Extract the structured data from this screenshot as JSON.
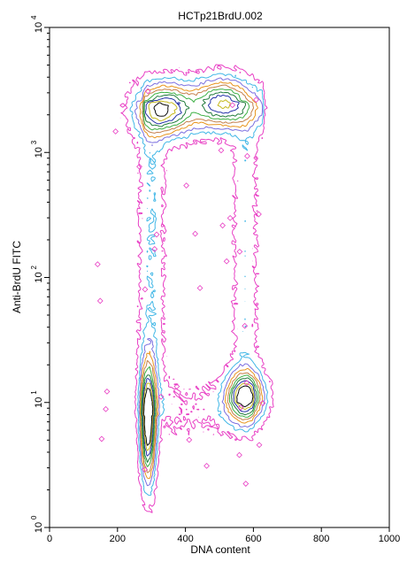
{
  "chart_data": {
    "type": "contour",
    "title": "HCTp21BrdU.002",
    "xlabel": "DNA content",
    "ylabel": "Anti-BrdU FITC",
    "xlim": [
      0,
      1000
    ],
    "ylim": [
      1,
      10000
    ],
    "yscale": "log",
    "x_ticks": [
      0,
      200,
      400,
      600,
      800,
      1000
    ],
    "y_ticks": [
      {
        "value": 1,
        "base": "10",
        "exp": "0"
      },
      {
        "value": 10,
        "base": "10",
        "exp": "1"
      },
      {
        "value": 100,
        "base": "10",
        "exp": "2"
      },
      {
        "value": 1000,
        "base": "10",
        "exp": "3"
      },
      {
        "value": 10000,
        "base": "10",
        "exp": "4"
      }
    ],
    "grid": false,
    "legend": "none",
    "populations": [
      {
        "x": 290,
        "y": 7,
        "sx": 14,
        "sly": 0.3,
        "weight": 1.0
      },
      {
        "x": 575,
        "y": 11,
        "sx": 35,
        "sly": 0.13,
        "weight": 0.85
      },
      {
        "x": 340,
        "y": 2200,
        "sx": 55,
        "sly": 0.14,
        "weight": 0.65
      },
      {
        "x": 510,
        "y": 2500,
        "sx": 55,
        "sly": 0.13,
        "weight": 0.6
      }
    ],
    "contour_colors": [
      "#e83ec4",
      "#3fb6e6",
      "#7b6fe0",
      "#e8941c",
      "#c47f4a",
      "#3cb043",
      "#1f7a3a",
      "#2430a8",
      "#c4b81a",
      "#0a0a0a"
    ]
  }
}
